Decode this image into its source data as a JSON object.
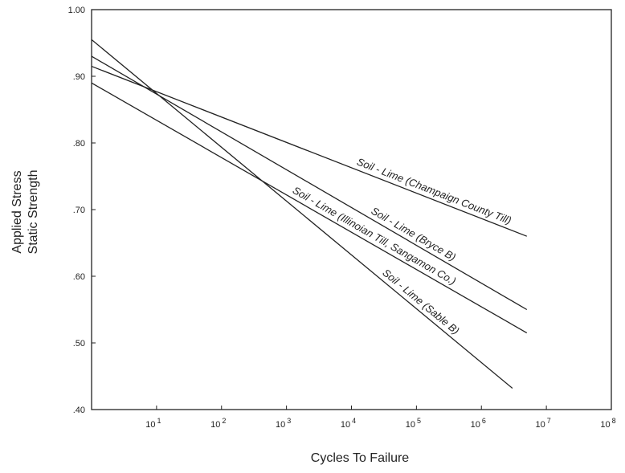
{
  "chart_data": {
    "type": "line",
    "xscale": "log",
    "xlabel": "Cycles To Failure",
    "ylabel_lines": [
      "Applied Stress",
      "Static Strength"
    ],
    "xlim": [
      1,
      100000000
    ],
    "ylim": [
      0.4,
      1.0
    ],
    "y_ticks": [
      {
        "value": 1.0,
        "label": "1.00"
      },
      {
        "value": 0.9,
        "label": ".90"
      },
      {
        "value": 0.8,
        "label": ".80"
      },
      {
        "value": 0.7,
        "label": ".70"
      },
      {
        "value": 0.6,
        "label": ".60"
      },
      {
        "value": 0.5,
        "label": ".50"
      },
      {
        "value": 0.4,
        "label": ".40"
      }
    ],
    "x_ticks": [
      {
        "value": 10,
        "base": "10",
        "exp": "1"
      },
      {
        "value": 100,
        "base": "10",
        "exp": "2"
      },
      {
        "value": 1000,
        "base": "10",
        "exp": "3"
      },
      {
        "value": 10000,
        "base": "10",
        "exp": "4"
      },
      {
        "value": 100000,
        "base": "10",
        "exp": "5"
      },
      {
        "value": 1000000,
        "base": "10",
        "exp": "6"
      },
      {
        "value": 10000000,
        "base": "10",
        "exp": "7"
      },
      {
        "value": 100000000,
        "base": "10",
        "exp": "8"
      }
    ],
    "series": [
      {
        "name": "Soil - Lime (Champaign County Till)",
        "x": [
          1,
          5000000
        ],
        "y": [
          0.915,
          0.66
        ]
      },
      {
        "name": "Soil - Lime (Bryce B)",
        "x": [
          1,
          5000000
        ],
        "y": [
          0.93,
          0.55
        ]
      },
      {
        "name": "Soil - Lime (Illinoian Till, Sangamon Co.)",
        "x": [
          1,
          5000000
        ],
        "y": [
          0.89,
          0.515
        ]
      },
      {
        "name": "Soil - Lime (Sable B)",
        "x": [
          1,
          3000000
        ],
        "y": [
          0.955,
          0.432
        ]
      }
    ]
  }
}
